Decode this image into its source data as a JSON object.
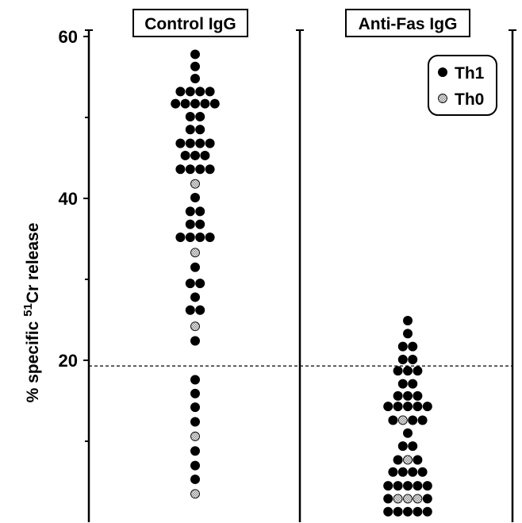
{
  "chart_data": {
    "type": "scatter",
    "subtype": "dot-plot",
    "panels": [
      "Control IgG",
      "Anti-Fas IgG"
    ],
    "ylabel": "% specific ⁵¹Cr release",
    "ylabel_parts": {
      "prefix": "% specific ",
      "superscript": "51",
      "suffix": "Cr release"
    },
    "ylim": [
      0,
      63
    ],
    "yticks": [
      20,
      40,
      60
    ],
    "threshold": 19.3,
    "legend": {
      "position": "top-right",
      "entries": [
        "Th1",
        "Th0"
      ]
    },
    "series": [
      {
        "name": "Th1",
        "color": "#000000",
        "rows": [
          {
            "panel": "Control IgG",
            "y": 57.8,
            "n": 1
          },
          {
            "panel": "Control IgG",
            "y": 56.3,
            "n": 1
          },
          {
            "panel": "Control IgG",
            "y": 54.8,
            "n": 1
          },
          {
            "panel": "Control IgG",
            "y": 53.2,
            "n": 4
          },
          {
            "panel": "Control IgG",
            "y": 51.7,
            "n": 5
          },
          {
            "panel": "Control IgG",
            "y": 50.1,
            "n": 2
          },
          {
            "panel": "Control IgG",
            "y": 48.5,
            "n": 2
          },
          {
            "panel": "Control IgG",
            "y": 46.8,
            "n": 4
          },
          {
            "panel": "Control IgG",
            "y": 45.3,
            "n": 3
          },
          {
            "panel": "Control IgG",
            "y": 43.6,
            "n": 4
          },
          {
            "panel": "Control IgG",
            "y": 40.1,
            "n": 1
          },
          {
            "panel": "Control IgG",
            "y": 38.4,
            "n": 2
          },
          {
            "panel": "Control IgG",
            "y": 36.8,
            "n": 2
          },
          {
            "panel": "Control IgG",
            "y": 35.2,
            "n": 4
          },
          {
            "panel": "Control IgG",
            "y": 31.5,
            "n": 1
          },
          {
            "panel": "Control IgG",
            "y": 29.5,
            "n": 2
          },
          {
            "panel": "Control IgG",
            "y": 27.8,
            "n": 1
          },
          {
            "panel": "Control IgG",
            "y": 26.2,
            "n": 2
          },
          {
            "panel": "Control IgG",
            "y": 22.4,
            "n": 1
          },
          {
            "panel": "Control IgG",
            "y": 17.6,
            "n": 1
          },
          {
            "panel": "Control IgG",
            "y": 15.9,
            "n": 1
          },
          {
            "panel": "Control IgG",
            "y": 14.2,
            "n": 1
          },
          {
            "panel": "Control IgG",
            "y": 12.4,
            "n": 1
          },
          {
            "panel": "Control IgG",
            "y": 8.8,
            "n": 1
          },
          {
            "panel": "Control IgG",
            "y": 7.0,
            "n": 1
          },
          {
            "panel": "Control IgG",
            "y": 5.3,
            "n": 1
          },
          {
            "panel": "Anti-Fas IgG",
            "y": 24.9,
            "n": 1
          },
          {
            "panel": "Anti-Fas IgG",
            "y": 23.3,
            "n": 1
          },
          {
            "panel": "Anti-Fas IgG",
            "y": 21.7,
            "n": 2
          },
          {
            "panel": "Anti-Fas IgG",
            "y": 20.1,
            "n": 2
          },
          {
            "panel": "Anti-Fas IgG",
            "y": 18.7,
            "n": 3
          },
          {
            "panel": "Anti-Fas IgG",
            "y": 17.1,
            "n": 2
          },
          {
            "panel": "Anti-Fas IgG",
            "y": 15.6,
            "n": 3
          },
          {
            "panel": "Anti-Fas IgG",
            "y": 14.3,
            "n": 5
          },
          {
            "panel": "Anti-Fas IgG",
            "y": 12.6,
            "n": 3
          },
          {
            "panel": "Anti-Fas IgG",
            "y": 11.0,
            "n": 1
          },
          {
            "panel": "Anti-Fas IgG",
            "y": 9.4,
            "n": 2
          },
          {
            "panel": "Anti-Fas IgG",
            "y": 7.7,
            "n": 2
          },
          {
            "panel": "Anti-Fas IgG",
            "y": 6.2,
            "n": 4
          },
          {
            "panel": "Anti-Fas IgG",
            "y": 4.5,
            "n": 5
          },
          {
            "panel": "Anti-Fas IgG",
            "y": 2.9,
            "n": 2
          },
          {
            "panel": "Anti-Fas IgG",
            "y": 1.3,
            "n": 5
          }
        ]
      },
      {
        "name": "Th0",
        "color": "#b0b0b0",
        "rows": [
          {
            "panel": "Control IgG",
            "y": 41.8,
            "n": 1
          },
          {
            "panel": "Control IgG",
            "y": 33.3,
            "n": 1
          },
          {
            "panel": "Control IgG",
            "y": 24.2,
            "n": 1
          },
          {
            "panel": "Control IgG",
            "y": 10.6,
            "n": 1
          },
          {
            "panel": "Control IgG",
            "y": 3.5,
            "n": 1
          },
          {
            "panel": "Anti-Fas IgG",
            "y": 12.6,
            "n": 1
          },
          {
            "panel": "Anti-Fas IgG",
            "y": 7.7,
            "n": 1
          },
          {
            "panel": "Anti-Fas IgG",
            "y": 2.9,
            "n": 3
          }
        ]
      }
    ]
  }
}
